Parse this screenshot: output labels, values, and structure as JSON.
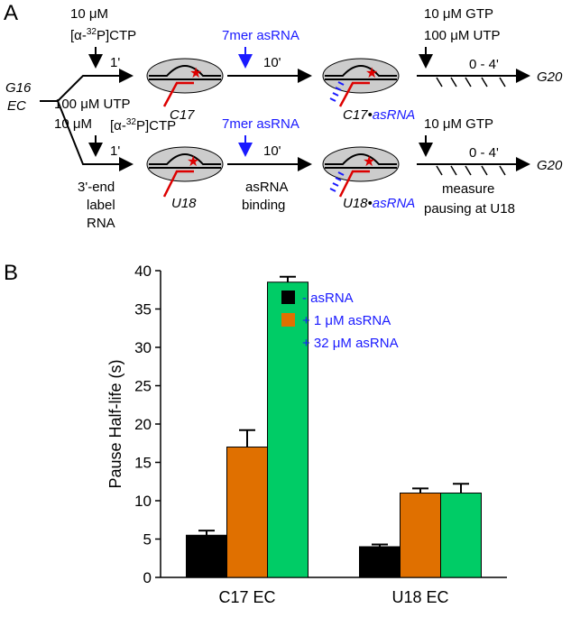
{
  "panel_a": {
    "label": "A",
    "left": {
      "top": "G16",
      "bottom": "EC"
    },
    "top_row": {
      "conc": "10 μM",
      "ntp": {
        "pre": "[α-",
        "sup": "32",
        "post": "P]CTP"
      },
      "time1": "1'",
      "complex1": "C17",
      "oligo": "7mer asRNA",
      "time2": "10'",
      "complex2": {
        "pre": "C17•",
        "blue": "asRNA"
      },
      "chase1": "10 μM GTP",
      "chase2": "100 μM UTP",
      "time3": "0 - 4'",
      "end": "G20"
    },
    "bottom_row": {
      "conc_utp": "100 μM UTP",
      "conc": "10 μM",
      "ntp": {
        "pre": "[α-",
        "sup": "32",
        "post": "P]CTP"
      },
      "time1": "1'",
      "step1": [
        "3'-end",
        "label",
        "RNA"
      ],
      "complex1": "U18",
      "oligo": "7mer asRNA",
      "time2": "10'",
      "step2": [
        "asRNA",
        "binding"
      ],
      "complex2": {
        "pre": "U18•",
        "blue": "asRNA"
      },
      "chase1": "10 μM GTP",
      "time3": "0 - 4'",
      "end": "G20",
      "step3": [
        "measure",
        "pausing at U18"
      ]
    }
  },
  "chart_data": {
    "type": "bar",
    "panel_label": "B",
    "y_label": "Pause Half-life (s)",
    "categories": [
      "C17 EC",
      "U18 EC"
    ],
    "series": [
      {
        "name": "-  asRNA",
        "color": "#000000",
        "values": [
          5.5,
          4.0
        ],
        "errors": [
          0.6,
          0.3
        ]
      },
      {
        "name": "+ 1 μM asRNA",
        "color": "#e07000",
        "values": [
          17,
          11
        ],
        "errors": [
          2.2,
          0.6
        ]
      },
      {
        "name": "+ 32 μM asRNA",
        "color": "#00cc66",
        "values": [
          38.5,
          11
        ],
        "errors": [
          0.7,
          1.2
        ]
      }
    ],
    "ylim": [
      0,
      40
    ],
    "yticks": [
      0,
      5,
      10,
      15,
      20,
      25,
      30,
      35,
      40
    ],
    "legend_color": "#1a1aff"
  }
}
